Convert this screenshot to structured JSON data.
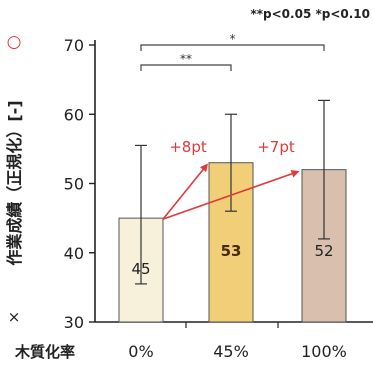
{
  "chart_data": {
    "type": "bar",
    "significance_legend": "**p<0.05  *p<0.10",
    "ylabel_marker_circle": "○",
    "ylabel": "作業成績（正規化）[-]",
    "ylabel_marker_cross": "×",
    "xlabel": "木質化率",
    "categories": [
      "0%",
      "45%",
      "100%"
    ],
    "values": [
      45,
      53,
      52
    ],
    "value_labels": [
      "45",
      "53",
      "52"
    ],
    "error_upper": [
      55.5,
      60,
      62
    ],
    "error_lower": [
      35.5,
      46,
      42
    ],
    "bar_colors": [
      "#f7f1dc",
      "#f1cf79",
      "#d9bfae"
    ],
    "ylim": [
      30,
      70
    ],
    "yticks": [
      30,
      40,
      50,
      60,
      70
    ],
    "annotations": [
      {
        "from": "0%",
        "to": "45%",
        "label": "+8pt"
      },
      {
        "from": "45%",
        "to": "100%",
        "label": "+7pt"
      }
    ],
    "significance": [
      {
        "from": "0%",
        "to": "45%",
        "label": "**"
      },
      {
        "from": "0%",
        "to": "100%",
        "label": "*"
      }
    ],
    "accent_color": "#e03a3a",
    "grid": false
  }
}
